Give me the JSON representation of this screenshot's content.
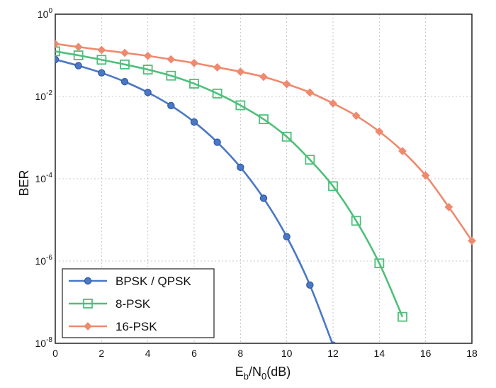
{
  "chart_data": {
    "type": "line",
    "xlabel": {
      "main": "E",
      "sub1": "b",
      "mid": "/N",
      "sub2": "0",
      "tail": "(dB)"
    },
    "ylabel": "BER",
    "xlim": [
      0,
      18
    ],
    "ylim": [
      1e-08,
      1
    ],
    "yscale": "log",
    "x_ticks": [
      "0",
      "2",
      "4",
      "6",
      "8",
      "10",
      "12",
      "14",
      "16",
      "18"
    ],
    "y_ticks": [
      {
        "value": 1,
        "base": "10",
        "exp": "0"
      },
      {
        "value": 0.01,
        "base": "10",
        "exp": "-2"
      },
      {
        "value": 0.0001,
        "base": "10",
        "exp": "-4"
      },
      {
        "value": 1e-06,
        "base": "10",
        "exp": "-6"
      },
      {
        "value": 1e-08,
        "base": "10",
        "exp": "-8"
      }
    ],
    "grid": true,
    "legend_position": "bottom-left",
    "series": [
      {
        "name": "BPSK / QPSK",
        "color": "#4a78c4",
        "marker": "circle",
        "x": [
          0,
          1,
          2,
          3,
          4,
          5,
          6,
          7,
          8,
          9,
          10,
          11,
          12
        ],
        "y": [
          0.079,
          0.056,
          0.0375,
          0.0229,
          0.0125,
          0.006,
          0.0024,
          0.00077,
          0.00019,
          3.36e-05,
          3.9e-06,
          2.61e-07,
          9e-09
        ]
      },
      {
        "name": "8-PSK",
        "color": "#4fbf7a",
        "marker": "square",
        "x": [
          0,
          1,
          2,
          3,
          4,
          5,
          6,
          7,
          8,
          9,
          10,
          11,
          12,
          13,
          14,
          15
        ],
        "y": [
          0.125,
          0.1,
          0.078,
          0.06,
          0.045,
          0.032,
          0.0205,
          0.0118,
          0.0061,
          0.0028,
          0.00105,
          0.00029,
          6.6e-05,
          9.5e-06,
          8.8e-07,
          4.4e-08
        ]
      },
      {
        "name": "16-PSK",
        "color": "#ee8a6e",
        "marker": "diamond",
        "x": [
          0,
          1,
          2,
          3,
          4,
          5,
          6,
          7,
          8,
          9,
          10,
          11,
          12,
          13,
          14,
          15,
          16,
          17,
          18
        ],
        "y": [
          0.19,
          0.16,
          0.135,
          0.115,
          0.097,
          0.08,
          0.065,
          0.051,
          0.04,
          0.03,
          0.02,
          0.0125,
          0.0068,
          0.0034,
          0.0014,
          0.00047,
          0.00012,
          2.05e-05,
          3.1e-06
        ]
      }
    ]
  }
}
